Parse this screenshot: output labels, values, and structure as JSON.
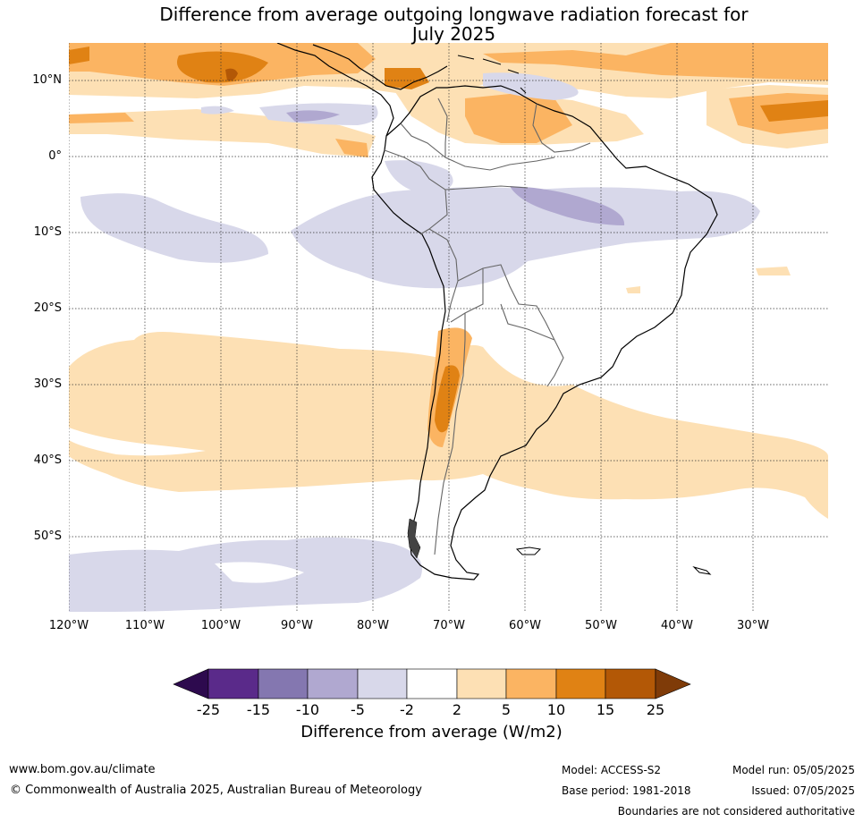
{
  "title_line1": "Difference from average outgoing longwave radiation forecast for",
  "title_line2": "July 2025",
  "lat_labels": [
    "10°N",
    "0°",
    "10°S",
    "20°S",
    "30°S",
    "40°S",
    "50°S"
  ],
  "lon_labels": [
    "120°W",
    "110°W",
    "100°W",
    "90°W",
    "80°W",
    "70°W",
    "60°W",
    "50°W",
    "40°W",
    "30°W"
  ],
  "colorbar": {
    "ticks": [
      "-25",
      "-15",
      "-10",
      "-5",
      "-2",
      "2",
      "5",
      "10",
      "15",
      "25"
    ],
    "colors": [
      "#2d0a4e",
      "#5a2a8a",
      "#8477b0",
      "#b0a8d0",
      "#d8d8ea",
      "#ffffff",
      "#fde0b4",
      "#fbb462",
      "#e08214",
      "#b35806",
      "#7f3b08"
    ],
    "label": "Difference from average (W/m2)"
  },
  "footer": {
    "website": "www.bom.gov.au/climate",
    "copyright": "© Commonwealth of Australia 2025, Australian Bureau of Meteorology",
    "model": "Model: ACCESS-S2",
    "base_period": "Base period: 1981-2018",
    "model_run": "Model run: 05/05/2025",
    "issued": "Issued: 07/05/2025",
    "disclaimer": "Boundaries are not considered authoritative"
  }
}
